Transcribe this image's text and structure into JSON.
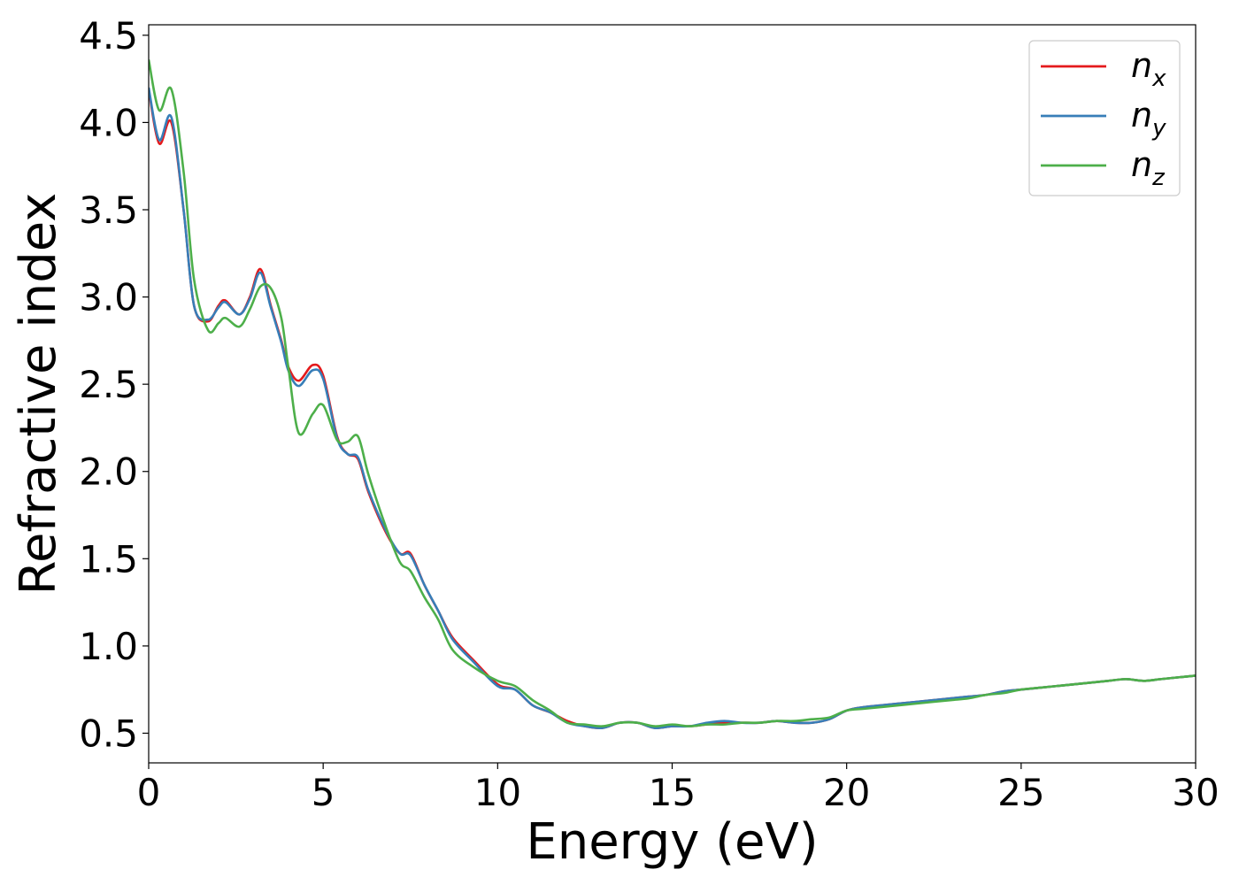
{
  "chart_data": {
    "type": "line",
    "title": "",
    "xlabel": "Energy (eV)",
    "ylabel": "Refractive index",
    "xlim": [
      0,
      30
    ],
    "ylim": [
      0.33,
      4.56
    ],
    "xticks": [
      0,
      5,
      10,
      15,
      20,
      25,
      30
    ],
    "xtick_labels": [
      "0",
      "5",
      "10",
      "15",
      "20",
      "25",
      "30"
    ],
    "yticks": [
      0.5,
      1.0,
      1.5,
      2.0,
      2.5,
      3.0,
      3.5,
      4.0,
      4.5
    ],
    "ytick_labels": [
      "0.5",
      "1.0",
      "1.5",
      "2.0",
      "2.5",
      "3.0",
      "3.5",
      "4.0",
      "4.5"
    ],
    "grid": false,
    "legend_position": "top-right",
    "x": [
      0,
      0.3,
      0.65,
      1.0,
      1.3,
      1.7,
      2.0,
      2.2,
      2.6,
      2.9,
      3.2,
      3.5,
      3.8,
      4.0,
      4.3,
      4.7,
      5.0,
      5.4,
      5.7,
      6.0,
      6.3,
      6.8,
      7.2,
      7.5,
      7.9,
      8.3,
      8.7,
      9.3,
      10.0,
      10.5,
      11.0,
      11.5,
      12.0,
      12.5,
      13.0,
      13.5,
      14.0,
      14.5,
      15.0,
      15.5,
      16.0,
      16.5,
      17.0,
      17.5,
      18.0,
      18.5,
      19.0,
      19.5,
      20.0,
      20.5,
      21.0,
      21.5,
      22.0,
      22.5,
      23.0,
      23.5,
      24.0,
      24.5,
      25.0,
      25.5,
      26.0,
      26.5,
      27.0,
      27.5,
      28.0,
      28.5,
      29.0,
      29.5,
      30.0
    ],
    "series": [
      {
        "name": "n_x",
        "label_base": "n",
        "label_sub": "x",
        "color": "#e41a1c",
        "values": [
          4.19,
          3.88,
          4.0,
          3.5,
          2.95,
          2.86,
          2.95,
          2.98,
          2.9,
          3.0,
          3.16,
          2.95,
          2.75,
          2.6,
          2.52,
          2.61,
          2.55,
          2.2,
          2.1,
          2.07,
          1.88,
          1.65,
          1.53,
          1.53,
          1.35,
          1.2,
          1.05,
          0.92,
          0.78,
          0.75,
          0.66,
          0.62,
          0.57,
          0.54,
          0.53,
          0.56,
          0.56,
          0.53,
          0.54,
          0.54,
          0.55,
          0.56,
          0.56,
          0.56,
          0.57,
          0.56,
          0.56,
          0.58,
          0.63,
          0.65,
          0.66,
          0.67,
          0.68,
          0.69,
          0.7,
          0.71,
          0.72,
          0.74,
          0.75,
          0.76,
          0.77,
          0.78,
          0.79,
          0.8,
          0.81,
          0.8,
          0.81,
          0.82,
          0.83
        ]
      },
      {
        "name": "n_y",
        "label_base": "n",
        "label_sub": "y",
        "color": "#377eb8",
        "values": [
          4.2,
          3.9,
          4.03,
          3.5,
          2.95,
          2.87,
          2.94,
          2.97,
          2.9,
          2.99,
          3.14,
          2.94,
          2.74,
          2.58,
          2.49,
          2.58,
          2.53,
          2.19,
          2.1,
          2.08,
          1.89,
          1.66,
          1.53,
          1.52,
          1.35,
          1.2,
          1.04,
          0.91,
          0.77,
          0.75,
          0.66,
          0.62,
          0.56,
          0.54,
          0.53,
          0.56,
          0.56,
          0.53,
          0.54,
          0.54,
          0.56,
          0.57,
          0.56,
          0.56,
          0.57,
          0.56,
          0.56,
          0.58,
          0.63,
          0.65,
          0.66,
          0.67,
          0.68,
          0.69,
          0.7,
          0.71,
          0.72,
          0.74,
          0.75,
          0.76,
          0.77,
          0.78,
          0.79,
          0.8,
          0.81,
          0.8,
          0.81,
          0.82,
          0.83
        ]
      },
      {
        "name": "n_z",
        "label_base": "n",
        "label_sub": "z",
        "color": "#4daf4a",
        "values": [
          4.36,
          4.07,
          4.19,
          3.72,
          3.1,
          2.81,
          2.85,
          2.88,
          2.83,
          2.93,
          3.06,
          3.05,
          2.88,
          2.6,
          2.22,
          2.33,
          2.38,
          2.18,
          2.17,
          2.2,
          1.98,
          1.68,
          1.48,
          1.43,
          1.28,
          1.15,
          0.98,
          0.88,
          0.8,
          0.77,
          0.69,
          0.63,
          0.56,
          0.55,
          0.54,
          0.56,
          0.56,
          0.54,
          0.55,
          0.54,
          0.55,
          0.55,
          0.56,
          0.56,
          0.57,
          0.57,
          0.58,
          0.59,
          0.63,
          0.64,
          0.65,
          0.66,
          0.67,
          0.68,
          0.69,
          0.7,
          0.72,
          0.73,
          0.75,
          0.76,
          0.77,
          0.78,
          0.79,
          0.8,
          0.81,
          0.8,
          0.81,
          0.82,
          0.83
        ]
      }
    ]
  }
}
